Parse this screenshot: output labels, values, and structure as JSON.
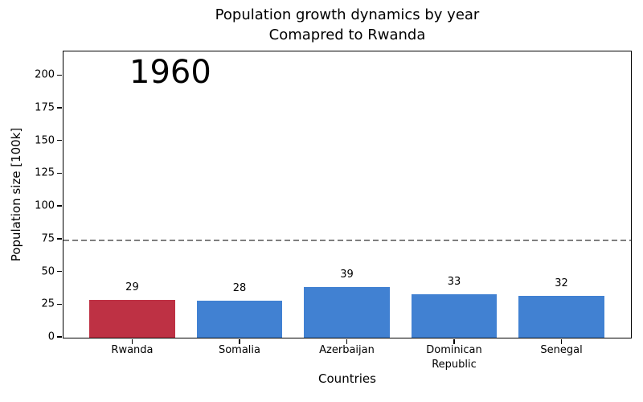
{
  "title": {
    "line1": "Population growth dynamics by year",
    "line2": "Comapred to Rwanda"
  },
  "annotation": {
    "year": "1960"
  },
  "axes": {
    "xlabel": "Countries",
    "ylabel": "Population size [100k]"
  },
  "chart_data": {
    "type": "bar",
    "title": "Population growth dynamics by year\nComapred to Rwanda",
    "xlabel": "Countries",
    "ylabel": "Population size [100k]",
    "categories": [
      "Rwanda",
      "Somalia",
      "Azerbaijan",
      "Dominican\nRepublic",
      "Senegal"
    ],
    "values": [
      29,
      28,
      39,
      33,
      32
    ],
    "bar_colors": [
      "#be3144",
      "#4181d2",
      "#4181d2",
      "#4181d2",
      "#4181d2"
    ],
    "value_labels": [
      "29",
      "28",
      "39",
      "33",
      "32"
    ],
    "yticks": [
      0,
      25,
      50,
      75,
      100,
      125,
      150,
      175,
      200
    ],
    "ylim": [
      0,
      218
    ],
    "grid": false,
    "legend": null,
    "annotation": "1960",
    "reference_line": {
      "value": 73.5,
      "style": "dashed",
      "color": "#7f7f7f"
    }
  },
  "colors": {
    "highlight_bar": "#be3144",
    "default_bar": "#4181d2",
    "reference_line": "#7f7f7f",
    "axis": "#000000",
    "background": "#ffffff"
  }
}
